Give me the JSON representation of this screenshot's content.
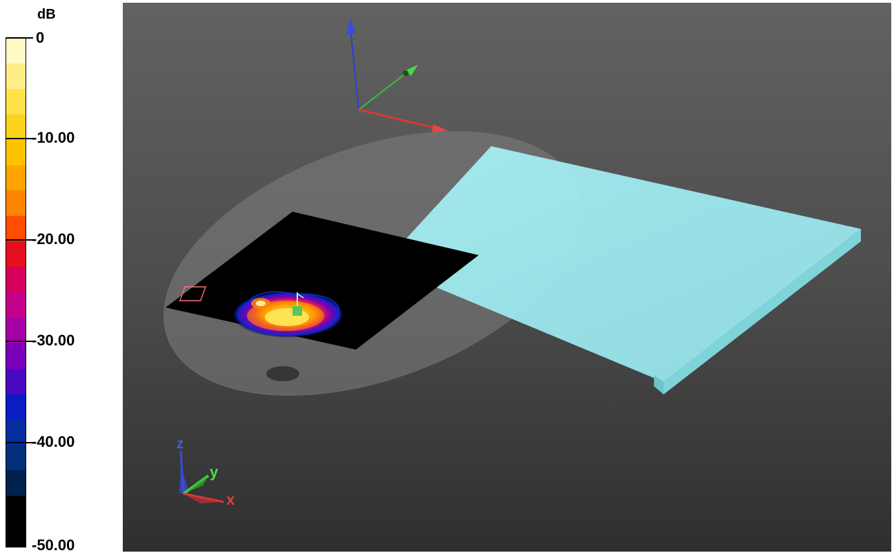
{
  "legend": {
    "unit": "dB",
    "labels": [
      "0",
      "-10.00",
      "-20.00",
      "-30.00",
      "-40.00",
      "-50.00"
    ],
    "colors": [
      "#fff9c8",
      "#ffee88",
      "#ffe24a",
      "#ffd21e",
      "#ffc200",
      "#ffa400",
      "#ff8400",
      "#ff4d00",
      "#e60f20",
      "#d4005a",
      "#c4008a",
      "#a600a6",
      "#7a00b8",
      "#4a08c2",
      "#0a1cc4",
      "#062ea0",
      "#02307a",
      "#01214d",
      "#000000",
      "#000000"
    ]
  },
  "viewport": {
    "background_top": "#626262",
    "background_bottom": "#2f2f2f",
    "plate_color": "#9ae8ee",
    "phantom_color": "#8a8a8a",
    "scan_area_color": "#000000"
  },
  "orientation_triad": {
    "x_label": "x",
    "y_label": "y",
    "z_label": "z",
    "x_color": "#e23a3a",
    "y_color": "#3ad43a",
    "z_color": "#3a4ae2"
  }
}
